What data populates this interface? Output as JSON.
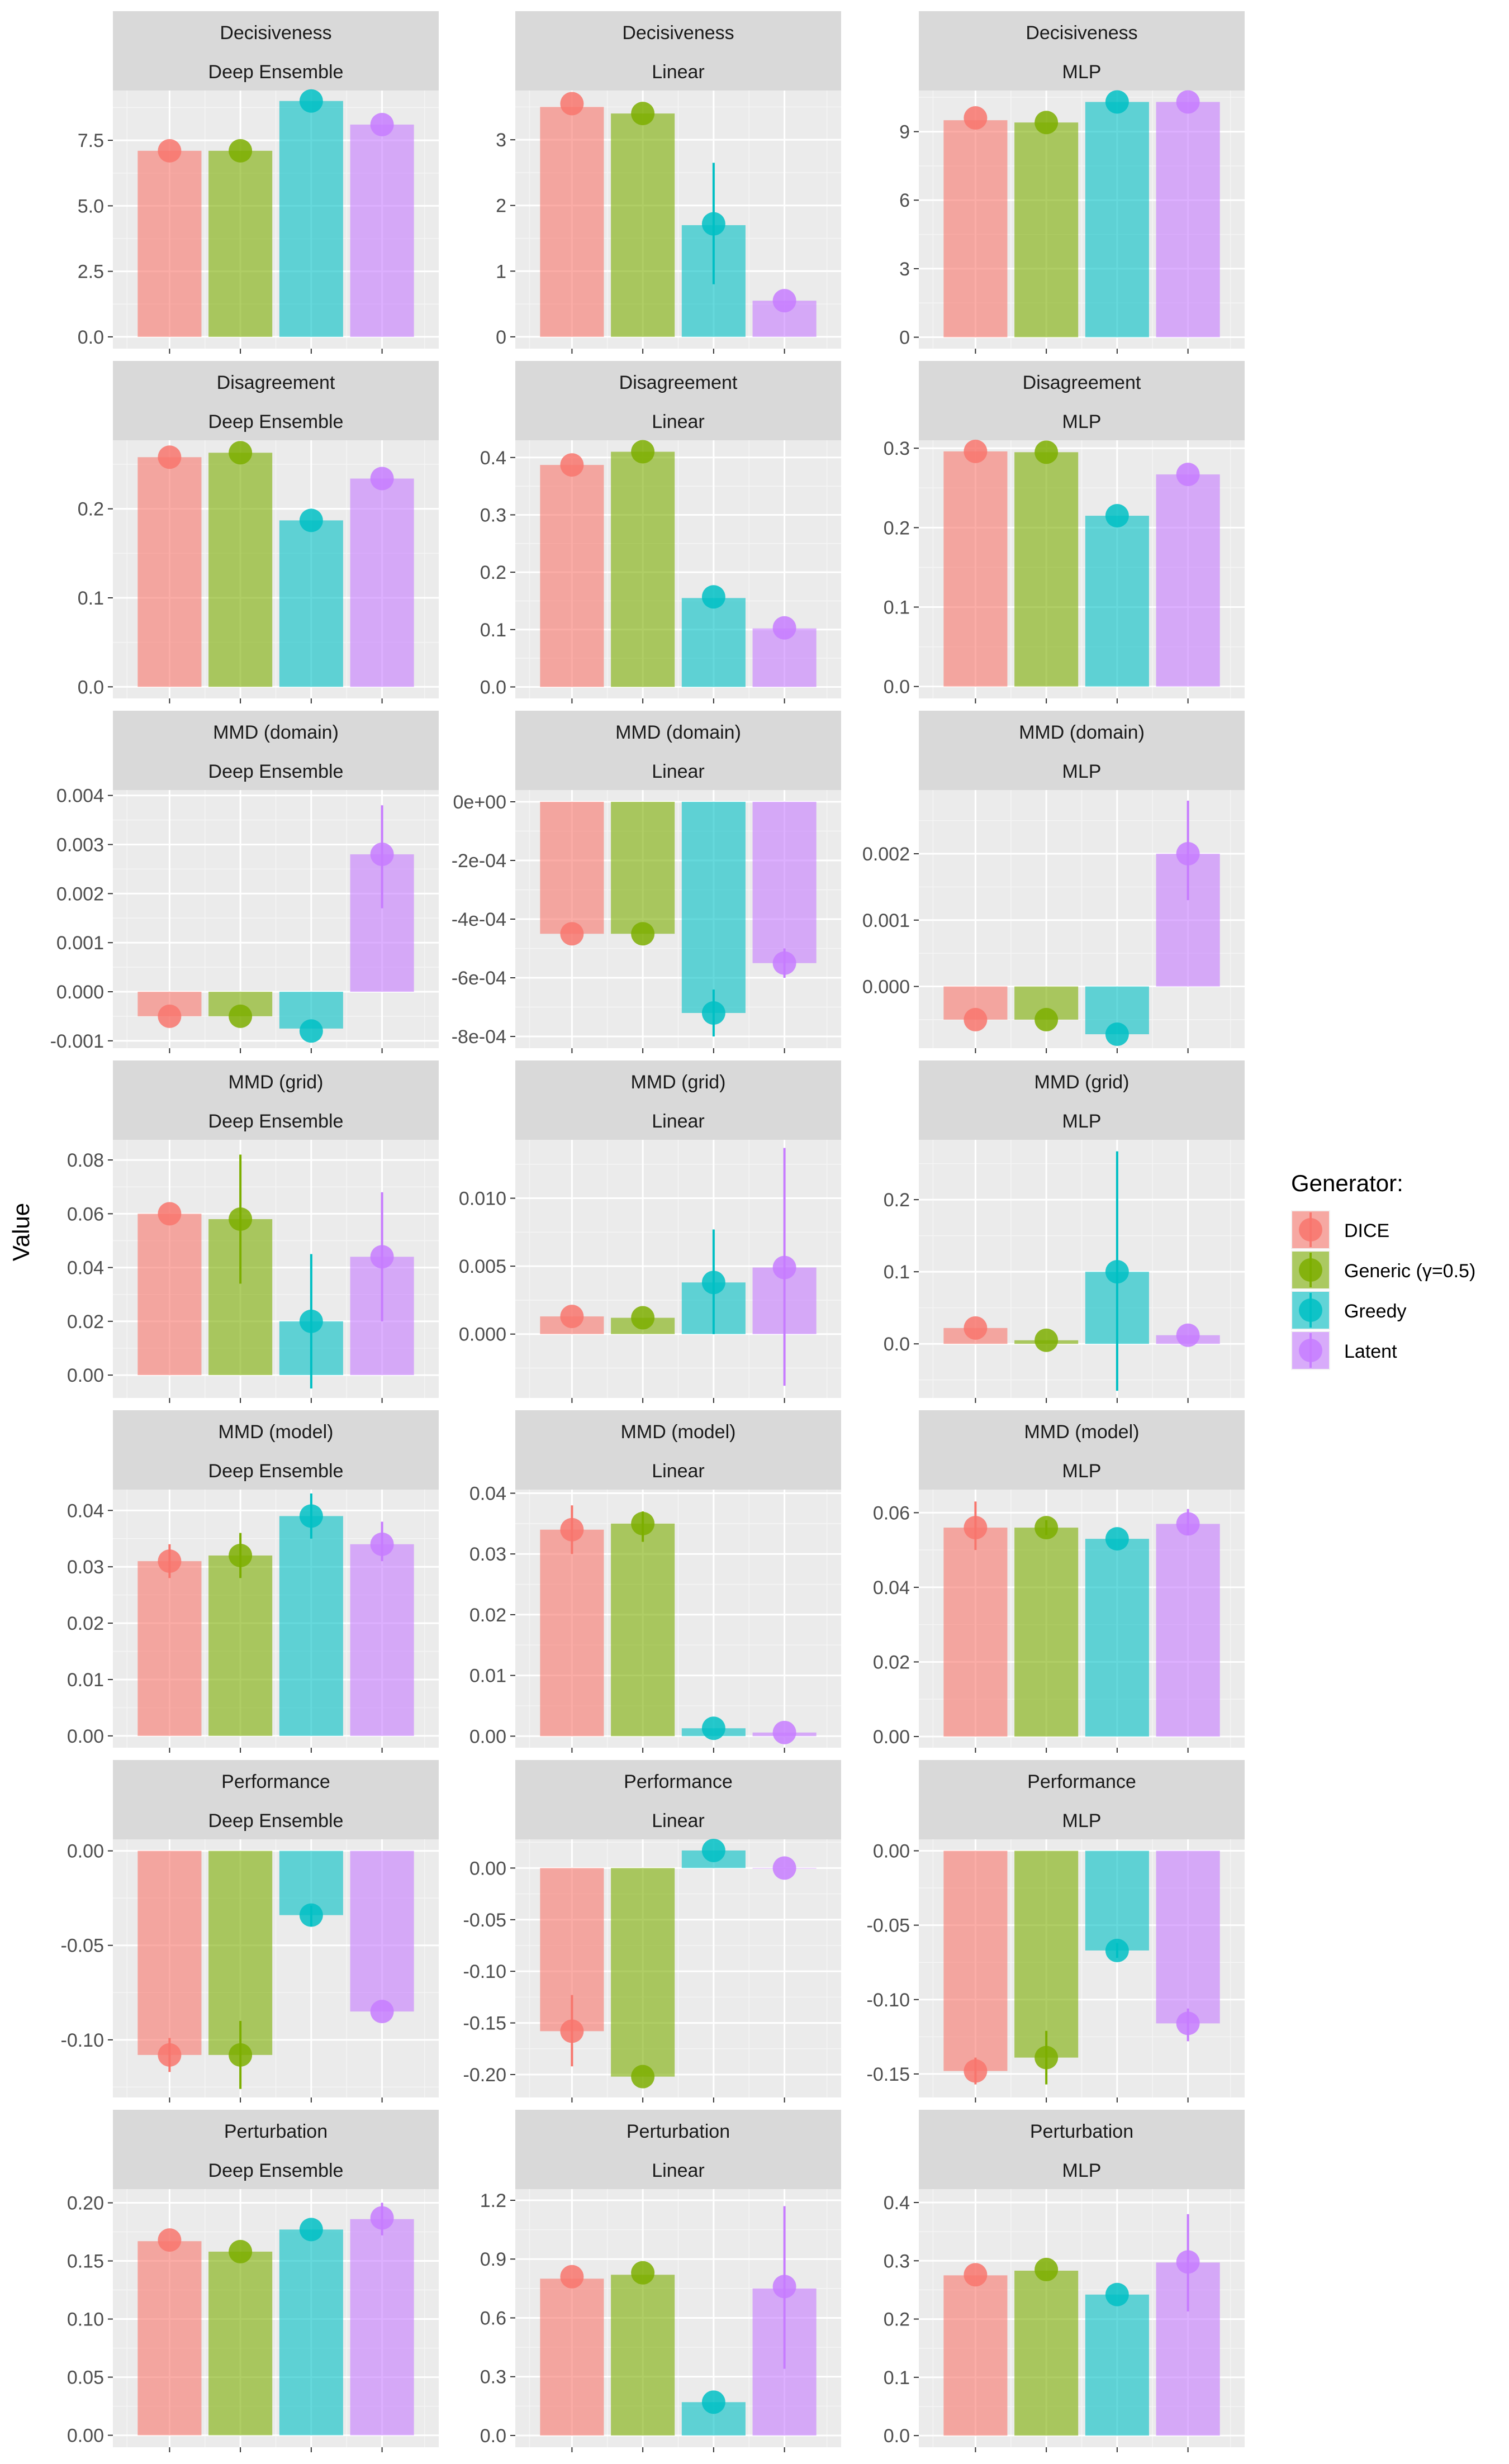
{
  "chart_data": {
    "type": "bar",
    "ylabel": "Value",
    "legend": {
      "title": "Generator:",
      "position": "right",
      "entries": [
        {
          "name": "DICE",
          "color": "#F8766D"
        },
        {
          "name": "Generic (γ=0.5)",
          "color": "#7CAE00"
        },
        {
          "name": "Greedy",
          "color": "#00BFC4"
        },
        {
          "name": "Latent",
          "color": "#C77CFF"
        }
      ]
    },
    "facet_rows": [
      "Decisiveness",
      "Disagreement",
      "MMD (domain)",
      "MMD (grid)",
      "MMD (model)",
      "Performance",
      "Perturbation"
    ],
    "facet_cols": [
      "Deep Ensemble",
      "Linear",
      "MLP"
    ],
    "grid": true,
    "panels": [
      {
        "row": "Decisiveness",
        "col": "Deep Ensemble",
        "ylim": [
          -0.45,
          9.4
        ],
        "yticks": [
          0,
          2.5,
          5,
          7.5
        ],
        "yticklabels": [
          "0.0",
          "2.5",
          "5.0",
          "7.5"
        ],
        "bars": [
          7.1,
          7.1,
          9.0,
          8.1
        ],
        "points": [
          7.1,
          7.1,
          9.0,
          8.1
        ],
        "err_lo": [
          7.1,
          7.1,
          9.0,
          8.1
        ],
        "err_hi": [
          7.1,
          7.1,
          9.0,
          8.1
        ]
      },
      {
        "row": "Decisiveness",
        "col": "Linear",
        "ylim": [
          -0.18,
          3.75
        ],
        "yticks": [
          0,
          1,
          2,
          3
        ],
        "yticklabels": [
          "0",
          "1",
          "2",
          "3"
        ],
        "bars": [
          3.5,
          3.4,
          1.7,
          0.55
        ],
        "points": [
          3.55,
          3.4,
          1.72,
          0.55
        ],
        "err_lo": [
          3.55,
          3.4,
          0.8,
          0.55
        ],
        "err_hi": [
          3.55,
          3.4,
          2.65,
          0.55
        ]
      },
      {
        "row": "Decisiveness",
        "col": "MLP",
        "ylim": [
          -0.5,
          10.8
        ],
        "yticks": [
          0,
          3,
          6,
          9
        ],
        "yticklabels": [
          "0",
          "3",
          "6",
          "9"
        ],
        "bars": [
          9.5,
          9.4,
          10.3,
          10.3
        ],
        "points": [
          9.6,
          9.4,
          10.3,
          10.3
        ],
        "err_lo": [
          9.6,
          9.4,
          10.3,
          10.3
        ],
        "err_hi": [
          9.6,
          9.4,
          10.3,
          10.3
        ]
      },
      {
        "row": "Disagreement",
        "col": "Deep Ensemble",
        "ylim": [
          -0.013,
          0.277
        ],
        "yticks": [
          0,
          0.1,
          0.2
        ],
        "yticklabels": [
          "0.0",
          "0.1",
          "0.2"
        ],
        "bars": [
          0.258,
          0.263,
          0.187,
          0.234
        ],
        "points": [
          0.258,
          0.263,
          0.187,
          0.234
        ],
        "err_lo": [
          0.258,
          0.263,
          0.187,
          0.234
        ],
        "err_hi": [
          0.258,
          0.263,
          0.187,
          0.234
        ]
      },
      {
        "row": "Disagreement",
        "col": "Linear",
        "ylim": [
          -0.02,
          0.43
        ],
        "yticks": [
          0,
          0.1,
          0.2,
          0.3,
          0.4
        ],
        "yticklabels": [
          "0.0",
          "0.1",
          "0.2",
          "0.3",
          "0.4"
        ],
        "bars": [
          0.387,
          0.41,
          0.155,
          0.102
        ],
        "points": [
          0.387,
          0.41,
          0.157,
          0.103
        ],
        "err_lo": [
          0.387,
          0.41,
          0.157,
          0.103
        ],
        "err_hi": [
          0.387,
          0.41,
          0.157,
          0.103
        ]
      },
      {
        "row": "Disagreement",
        "col": "MLP",
        "ylim": [
          -0.015,
          0.31
        ],
        "yticks": [
          0,
          0.1,
          0.2,
          0.3
        ],
        "yticklabels": [
          "0.0",
          "0.1",
          "0.2",
          "0.3"
        ],
        "bars": [
          0.296,
          0.295,
          0.215,
          0.267
        ],
        "points": [
          0.296,
          0.295,
          0.215,
          0.267
        ],
        "err_lo": [
          0.296,
          0.295,
          0.215,
          0.267
        ],
        "err_hi": [
          0.296,
          0.295,
          0.215,
          0.267
        ]
      },
      {
        "row": "MMD (domain)",
        "col": "Deep Ensemble",
        "ylim": [
          -0.00115,
          0.00411
        ],
        "yticks": [
          -0.001,
          0,
          0.001,
          0.002,
          0.003,
          0.004
        ],
        "yticklabels": [
          "-0.001",
          "0.000",
          "0.001",
          "0.002",
          "0.003",
          "0.004"
        ],
        "bars": [
          -0.0005,
          -0.0005,
          -0.00075,
          0.0028
        ],
        "points": [
          -0.0005,
          -0.0005,
          -0.0008,
          0.0028
        ],
        "err_lo": [
          -0.0005,
          -0.0005,
          -0.0008,
          0.0017
        ],
        "err_hi": [
          -0.0005,
          -0.0005,
          -0.0008,
          0.0038
        ]
      },
      {
        "row": "MMD (domain)",
        "col": "Linear",
        "ylim": [
          -0.00084,
          4e-05
        ],
        "yticks": [
          -0.0008,
          -0.0006,
          -0.0004,
          -0.0002,
          0
        ],
        "yticklabels": [
          "-8e-04",
          "-6e-04",
          "-4e-04",
          "-2e-04",
          "0e+00"
        ],
        "bars": [
          -0.00045,
          -0.00045,
          -0.00072,
          -0.00055
        ],
        "points": [
          -0.00045,
          -0.00045,
          -0.00072,
          -0.00055
        ],
        "err_lo": [
          -0.00045,
          -0.00045,
          -0.0008,
          -0.0006
        ],
        "err_hi": [
          -0.00045,
          -0.00045,
          -0.00064,
          -0.0005
        ]
      },
      {
        "row": "MMD (domain)",
        "col": "MLP",
        "ylim": [
          -0.00093,
          0.00296
        ],
        "yticks": [
          0,
          0.001,
          0.002
        ],
        "yticklabels": [
          "0.000",
          "0.001",
          "0.002"
        ],
        "bars": [
          -0.0005,
          -0.0005,
          -0.00072,
          0.002
        ],
        "points": [
          -0.0005,
          -0.0005,
          -0.00072,
          0.002
        ],
        "err_lo": [
          -0.0005,
          -0.0005,
          -0.00072,
          0.0013
        ],
        "err_hi": [
          -0.0005,
          -0.0005,
          -0.00072,
          0.0028
        ]
      },
      {
        "row": "MMD (grid)",
        "col": "Deep Ensemble",
        "ylim": [
          -0.0085,
          0.0875
        ],
        "yticks": [
          0,
          0.02,
          0.04,
          0.06,
          0.08
        ],
        "yticklabels": [
          "0.00",
          "0.02",
          "0.04",
          "0.06",
          "0.08"
        ],
        "bars": [
          0.06,
          0.058,
          0.02,
          0.044
        ],
        "points": [
          0.06,
          0.058,
          0.02,
          0.044
        ],
        "err_lo": [
          0.06,
          0.034,
          -0.005,
          0.02
        ],
        "err_hi": [
          0.06,
          0.082,
          0.045,
          0.068
        ]
      },
      {
        "row": "MMD (grid)",
        "col": "Linear",
        "ylim": [
          -0.0047,
          0.0143
        ],
        "yticks": [
          0,
          0.005,
          0.01
        ],
        "yticklabels": [
          "0.000",
          "0.005",
          "0.010"
        ],
        "bars": [
          0.0013,
          0.0012,
          0.0038,
          0.0049
        ],
        "points": [
          0.0013,
          0.0012,
          0.0038,
          0.0049
        ],
        "err_lo": [
          0.0013,
          0.0012,
          0.0,
          -0.0038
        ],
        "err_hi": [
          0.0013,
          0.0012,
          0.0077,
          0.0137
        ]
      },
      {
        "row": "MMD (grid)",
        "col": "MLP",
        "ylim": [
          -0.075,
          0.283
        ],
        "yticks": [
          0,
          0.1,
          0.2
        ],
        "yticklabels": [
          "0.0",
          "0.1",
          "0.2"
        ],
        "bars": [
          0.022,
          0.005,
          0.1,
          0.012
        ],
        "points": [
          0.022,
          0.005,
          0.1,
          0.012
        ],
        "err_lo": [
          0.022,
          0.005,
          -0.065,
          0.012
        ],
        "err_hi": [
          0.022,
          0.005,
          0.267,
          0.012
        ]
      },
      {
        "row": "MMD (model)",
        "col": "Deep Ensemble",
        "ylim": [
          -0.0021,
          0.0437
        ],
        "yticks": [
          0,
          0.01,
          0.02,
          0.03,
          0.04
        ],
        "yticklabels": [
          "0.00",
          "0.01",
          "0.02",
          "0.03",
          "0.04"
        ],
        "bars": [
          0.031,
          0.032,
          0.039,
          0.034
        ],
        "points": [
          0.031,
          0.032,
          0.039,
          0.034
        ],
        "err_lo": [
          0.028,
          0.028,
          0.035,
          0.031
        ],
        "err_hi": [
          0.034,
          0.036,
          0.043,
          0.038
        ]
      },
      {
        "row": "MMD (model)",
        "col": "Linear",
        "ylim": [
          -0.0019,
          0.0406
        ],
        "yticks": [
          0,
          0.01,
          0.02,
          0.03,
          0.04
        ],
        "yticklabels": [
          "0.00",
          "0.01",
          "0.02",
          "0.03",
          "0.04"
        ],
        "bars": [
          0.034,
          0.035,
          0.0013,
          0.0006
        ],
        "points": [
          0.034,
          0.035,
          0.0013,
          0.0006
        ],
        "err_lo": [
          0.03,
          0.032,
          0.0013,
          0.0006
        ],
        "err_hi": [
          0.038,
          0.037,
          0.0013,
          0.0006
        ]
      },
      {
        "row": "MMD (model)",
        "col": "MLP",
        "ylim": [
          -0.003,
          0.0662
        ],
        "yticks": [
          0,
          0.02,
          0.04,
          0.06
        ],
        "yticklabels": [
          "0.00",
          "0.02",
          "0.04",
          "0.06"
        ],
        "bars": [
          0.056,
          0.056,
          0.053,
          0.057
        ],
        "points": [
          0.056,
          0.056,
          0.053,
          0.057
        ],
        "err_lo": [
          0.05,
          0.054,
          0.053,
          0.054
        ],
        "err_hi": [
          0.063,
          0.058,
          0.053,
          0.061
        ]
      },
      {
        "row": "Performance",
        "col": "Deep Ensemble",
        "ylim": [
          -0.1305,
          0.0061
        ],
        "yticks": [
          -0.1,
          -0.05,
          0
        ],
        "yticklabels": [
          "-0.10",
          "-0.05",
          "0.00"
        ],
        "bars": [
          -0.108,
          -0.108,
          -0.034,
          -0.085
        ],
        "points": [
          -0.108,
          -0.108,
          -0.034,
          -0.085
        ],
        "err_lo": [
          -0.117,
          -0.126,
          -0.04,
          -0.085
        ],
        "err_hi": [
          -0.099,
          -0.09,
          -0.029,
          -0.085
        ]
      },
      {
        "row": "Performance",
        "col": "Linear",
        "ylim": [
          -0.2222,
          0.0278
        ],
        "yticks": [
          -0.2,
          -0.15,
          -0.1,
          -0.05,
          0
        ],
        "yticklabels": [
          "-0.20",
          "-0.15",
          "-0.10",
          "-0.05",
          "0.00"
        ],
        "bars": [
          -0.158,
          -0.202,
          0.017,
          0.0
        ],
        "points": [
          -0.158,
          -0.202,
          0.017,
          0.0
        ],
        "err_lo": [
          -0.192,
          -0.202,
          0.017,
          0.0
        ],
        "err_hi": [
          -0.123,
          -0.202,
          0.017,
          0.0
        ]
      },
      {
        "row": "Performance",
        "col": "MLP",
        "ylim": [
          -0.1658,
          0.0077
        ],
        "yticks": [
          -0.15,
          -0.1,
          -0.05,
          0
        ],
        "yticklabels": [
          "-0.15",
          "-0.10",
          "-0.05",
          "0.00"
        ],
        "bars": [
          -0.148,
          -0.139,
          -0.067,
          -0.116
        ],
        "points": [
          -0.148,
          -0.139,
          -0.067,
          -0.116
        ],
        "err_lo": [
          -0.157,
          -0.157,
          -0.072,
          -0.128
        ],
        "err_hi": [
          -0.139,
          -0.121,
          -0.062,
          -0.106
        ]
      },
      {
        "row": "Perturbation",
        "col": "Deep Ensemble",
        "ylim": [
          -0.0103,
          0.2118
        ],
        "yticks": [
          0,
          0.05,
          0.1,
          0.15,
          0.2
        ],
        "yticklabels": [
          "0.00",
          "0.05",
          "0.10",
          "0.15",
          "0.20"
        ],
        "bars": [
          0.167,
          0.158,
          0.177,
          0.186
        ],
        "points": [
          0.168,
          0.158,
          0.177,
          0.187
        ],
        "err_lo": [
          0.168,
          0.158,
          0.177,
          0.172
        ],
        "err_hi": [
          0.168,
          0.158,
          0.177,
          0.2
        ]
      },
      {
        "row": "Perturbation",
        "col": "Linear",
        "ylim": [
          -0.06,
          1.257
        ],
        "yticks": [
          0,
          0.3,
          0.6,
          0.9,
          1.2
        ],
        "yticklabels": [
          "0.0",
          "0.3",
          "0.6",
          "0.9",
          "1.2"
        ],
        "bars": [
          0.8,
          0.82,
          0.17,
          0.75
        ],
        "points": [
          0.81,
          0.83,
          0.17,
          0.76
        ],
        "err_lo": [
          0.81,
          0.83,
          0.17,
          0.34
        ],
        "err_hi": [
          0.81,
          0.83,
          0.17,
          1.17
        ]
      },
      {
        "row": "Perturbation",
        "col": "MLP",
        "ylim": [
          -0.02,
          0.423
        ],
        "yticks": [
          0,
          0.1,
          0.2,
          0.3,
          0.4
        ],
        "yticklabels": [
          "0.0",
          "0.1",
          "0.2",
          "0.3",
          "0.4"
        ],
        "bars": [
          0.275,
          0.283,
          0.242,
          0.297
        ],
        "points": [
          0.276,
          0.285,
          0.242,
          0.298
        ],
        "err_lo": [
          0.276,
          0.285,
          0.242,
          0.213
        ],
        "err_hi": [
          0.276,
          0.285,
          0.242,
          0.38
        ]
      }
    ]
  }
}
